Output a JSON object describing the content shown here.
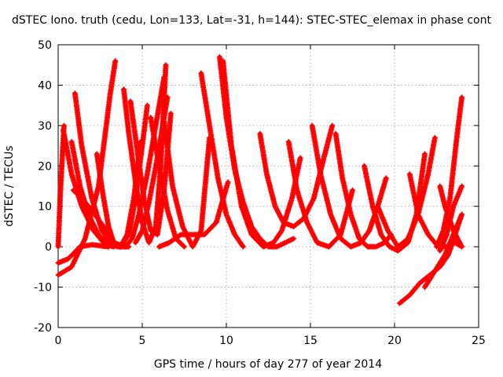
{
  "chart_data": {
    "type": "line",
    "title": "dSTEC Iono. truth (cedu, Lon=133, Lat=-31, h=144): STEC-STEC_elemax in phase cont",
    "xlabel": "GPS time / hours of day 277 of year 2014",
    "ylabel": "dSTEC  / TECUs",
    "xlim": [
      0,
      25
    ],
    "ylim": [
      -20,
      50
    ],
    "xticks": [
      "0",
      "5",
      "10",
      "15",
      "20",
      "25"
    ],
    "yticks": [
      "-20",
      "-10",
      "0",
      "10",
      "20",
      "30",
      "40",
      "50"
    ],
    "grid": true,
    "marker": "plus",
    "color": "#ff0000",
    "series": [
      {
        "x": [
          0.0,
          0.8,
          1.6,
          2.4,
          2.8,
          3.1,
          3.4
        ],
        "y": [
          -7,
          -5,
          2,
          15,
          28,
          38,
          46
        ]
      },
      {
        "x": [
          0.0,
          0.6,
          1.3,
          2.0,
          2.6,
          3.0
        ],
        "y": [
          -4,
          -3,
          0,
          0.5,
          0.2,
          0
        ]
      },
      {
        "x": [
          0.0,
          0.15,
          0.35
        ],
        "y": [
          0,
          15,
          30
        ]
      },
      {
        "x": [
          0.3,
          0.8,
          1.4,
          2.1,
          2.8,
          3.3
        ],
        "y": [
          29,
          18,
          10,
          4,
          0.5,
          0
        ]
      },
      {
        "x": [
          0.8,
          1.3,
          1.8,
          2.4,
          3.0,
          3.6,
          4.2
        ],
        "y": [
          26,
          15,
          8,
          3,
          0.5,
          0,
          0
        ]
      },
      {
        "x": [
          0.9,
          1.4,
          2.0,
          2.7,
          3.3,
          4.0
        ],
        "y": [
          14,
          12,
          9,
          5,
          1,
          0
        ]
      },
      {
        "x": [
          1.0,
          1.4,
          2.0,
          2.6,
          3.2,
          3.7,
          4.1,
          4.5,
          4.9
        ],
        "y": [
          38,
          25,
          12,
          4,
          0.5,
          0,
          3,
          12,
          26
        ]
      },
      {
        "x": [
          2.3,
          2.7,
          3.0,
          3.3,
          3.7,
          4.2,
          4.6,
          5.0,
          5.3
        ],
        "y": [
          23,
          12,
          5,
          1,
          0,
          3,
          12,
          25,
          35
        ]
      },
      {
        "x": [
          4.0,
          4.4,
          4.8,
          5.3,
          5.8,
          6.3
        ],
        "y": [
          0,
          2,
          8,
          18,
          30,
          42
        ]
      },
      {
        "x": [
          3.9,
          4.2,
          4.6,
          5.0,
          5.4,
          5.8,
          6.1,
          6.4
        ],
        "y": [
          39,
          28,
          16,
          6,
          1,
          5,
          20,
          45
        ]
      },
      {
        "x": [
          4.3,
          4.7,
          5.1,
          5.5,
          5.9,
          6.3,
          6.7
        ],
        "y": [
          36,
          24,
          12,
          4,
          3,
          14,
          33
        ]
      },
      {
        "x": [
          4.6,
          5.0,
          5.4,
          5.9,
          6.3,
          6.5
        ],
        "y": [
          1,
          4,
          11,
          22,
          32,
          37
        ]
      },
      {
        "x": [
          5.5,
          6.0,
          6.5,
          7.0,
          7.5
        ],
        "y": [
          32,
          20,
          9,
          2,
          0
        ]
      },
      {
        "x": [
          6.3,
          6.8,
          7.4,
          8.0,
          8.5,
          9.0
        ],
        "y": [
          31,
          15,
          5,
          0,
          4,
          27
        ]
      },
      {
        "x": [
          6.0,
          6.6,
          7.3,
          8.0,
          8.7,
          9.4,
          10.1
        ],
        "y": [
          0,
          1,
          3,
          3,
          3,
          6,
          16
        ]
      },
      {
        "x": [
          8.5,
          9.0,
          9.5,
          10.0,
          10.5,
          11.0
        ],
        "y": [
          43,
          30,
          17,
          8,
          3,
          0
        ]
      },
      {
        "x": [
          9.6,
          10.0,
          10.5,
          11.0,
          11.5,
          12.0,
          12.5,
          13.0,
          13.5,
          14.0
        ],
        "y": [
          47,
          32,
          19,
          11,
          5,
          2,
          0,
          0,
          1,
          2
        ]
      },
      {
        "x": [
          9.8,
          10.3,
          10.9,
          11.5,
          12.2,
          12.8,
          13.3,
          13.9,
          14.4
        ],
        "y": [
          46,
          25,
          10,
          3,
          0,
          1,
          4,
          12,
          22
        ]
      },
      {
        "x": [
          12.0,
          12.4,
          12.9,
          13.4,
          14.0,
          14.6,
          15.2,
          15.8,
          16.3
        ],
        "y": [
          28,
          18,
          10,
          6,
          5,
          7,
          12,
          22,
          30
        ]
      },
      {
        "x": [
          13.7,
          14.2,
          14.8,
          15.4,
          16.1,
          16.8,
          17.5
        ],
        "y": [
          26,
          14,
          6,
          1,
          0,
          3,
          14
        ]
      },
      {
        "x": [
          15.1,
          15.6,
          16.2,
          16.8,
          17.4,
          18.0,
          18.5,
          19.0,
          19.5
        ],
        "y": [
          30,
          18,
          8,
          2,
          0,
          1,
          4,
          10,
          17
        ]
      },
      {
        "x": [
          16.5,
          16.9,
          17.4,
          17.9,
          18.4,
          18.9,
          19.4,
          19.8
        ],
        "y": [
          28,
          17,
          8,
          2,
          0,
          0,
          1,
          3
        ]
      },
      {
        "x": [
          18.2,
          18.7,
          19.2,
          19.7,
          20.2,
          20.8,
          21.3,
          21.8
        ],
        "y": [
          20,
          10,
          3,
          0,
          -1,
          1,
          8,
          23
        ]
      },
      {
        "x": [
          19.0,
          19.6,
          20.2,
          20.8,
          21.4,
          22.0,
          22.4
        ],
        "y": [
          10,
          4,
          0,
          2,
          8,
          18,
          27
        ]
      },
      {
        "x": [
          20.9,
          21.4,
          22.0,
          22.6,
          23.1,
          23.6,
          24.0
        ],
        "y": [
          18,
          8,
          3,
          0,
          0,
          1,
          0
        ]
      },
      {
        "x": [
          20.3,
          20.9,
          21.5,
          22.1,
          22.7,
          23.2,
          23.6,
          24.0
        ],
        "y": [
          -14,
          -12,
          -9,
          -7,
          -5,
          -2,
          3,
          8
        ]
      },
      {
        "x": [
          21.8,
          22.4,
          23.0,
          23.5,
          24.0
        ],
        "y": [
          -10,
          -6,
          -2,
          3,
          8
        ]
      },
      {
        "x": [
          22.7,
          23.1,
          23.5,
          24.0
        ],
        "y": [
          -1,
          3,
          10,
          15
        ]
      },
      {
        "x": [
          22.7,
          23.0,
          23.5,
          24.0
        ],
        "y": [
          15,
          10,
          4,
          0
        ]
      },
      {
        "x": [
          22.5,
          22.9,
          23.3,
          23.7,
          24.0
        ],
        "y": [
          0,
          4,
          12,
          27,
          37
        ]
      }
    ]
  }
}
